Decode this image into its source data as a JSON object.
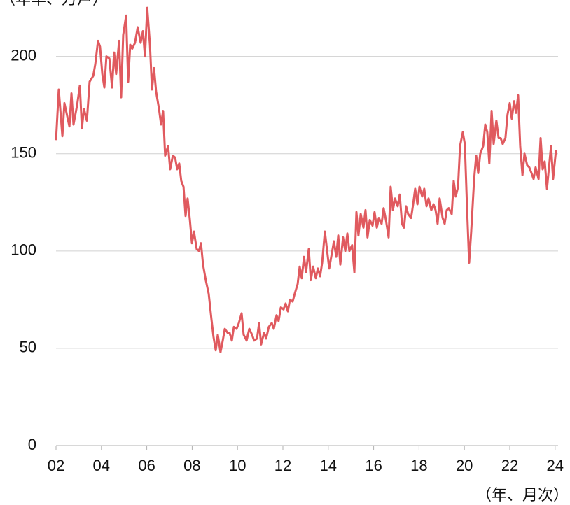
{
  "chart_data": {
    "type": "line",
    "y_label": "（年率、万戸）",
    "x_label": "（年、月次）",
    "xlim": [
      2002,
      2024.13
    ],
    "ylim": [
      0,
      229
    ],
    "xticks": [
      {
        "value": 2002,
        "label": "02"
      },
      {
        "value": 2004,
        "label": "04"
      },
      {
        "value": 2006,
        "label": "06"
      },
      {
        "value": 2008,
        "label": "08"
      },
      {
        "value": 2010,
        "label": "10"
      },
      {
        "value": 2012,
        "label": "12"
      },
      {
        "value": 2014,
        "label": "14"
      },
      {
        "value": 2016,
        "label": "16"
      },
      {
        "value": 2018,
        "label": "18"
      },
      {
        "value": 2020,
        "label": "20"
      },
      {
        "value": 2022,
        "label": "22"
      },
      {
        "value": 2024,
        "label": "24"
      }
    ],
    "yticks": [
      0,
      50,
      100,
      150,
      200
    ],
    "grid": true,
    "series": [
      {
        "color": "#e05a5f",
        "x": [
          2002.0,
          2002.12,
          2002.28,
          2002.37,
          2002.59,
          2002.68,
          2002.77,
          2002.93,
          2003.05,
          2003.14,
          2003.23,
          2003.36,
          2003.48,
          2003.64,
          2003.73,
          2003.85,
          2003.94,
          2004.04,
          2004.13,
          2004.22,
          2004.35,
          2004.47,
          2004.56,
          2004.65,
          2004.78,
          2004.87,
          2004.96,
          2005.09,
          2005.18,
          2005.27,
          2005.36,
          2005.48,
          2005.6,
          2005.73,
          2005.83,
          2005.92,
          2006.02,
          2006.14,
          2006.23,
          2006.32,
          2006.41,
          2006.54,
          2006.63,
          2006.72,
          2006.81,
          2006.94,
          2007.03,
          2007.15,
          2007.25,
          2007.34,
          2007.43,
          2007.52,
          2007.62,
          2007.71,
          2007.8,
          2007.9,
          2007.99,
          2008.08,
          2008.2,
          2008.3,
          2008.39,
          2008.48,
          2008.6,
          2008.73,
          2008.85,
          2008.94,
          2009.04,
          2009.13,
          2009.25,
          2009.35,
          2009.44,
          2009.56,
          2009.65,
          2009.75,
          2009.84,
          2009.96,
          2010.06,
          2010.18,
          2010.27,
          2010.4,
          2010.52,
          2010.64,
          2010.73,
          2010.86,
          2010.95,
          2011.04,
          2011.17,
          2011.26,
          2011.38,
          2011.51,
          2011.6,
          2011.72,
          2011.81,
          2011.91,
          2012.03,
          2012.12,
          2012.22,
          2012.31,
          2012.43,
          2012.52,
          2012.65,
          2012.74,
          2012.83,
          2012.93,
          2013.02,
          2013.14,
          2013.23,
          2013.33,
          2013.45,
          2013.54,
          2013.64,
          2013.73,
          2013.85,
          2013.94,
          2014.04,
          2014.13,
          2014.25,
          2014.35,
          2014.44,
          2014.53,
          2014.65,
          2014.75,
          2014.84,
          2014.93,
          2015.05,
          2015.15,
          2015.24,
          2015.33,
          2015.43,
          2015.55,
          2015.64,
          2015.73,
          2015.83,
          2015.95,
          2016.04,
          2016.14,
          2016.23,
          2016.35,
          2016.44,
          2016.54,
          2016.66,
          2016.75,
          2016.85,
          2016.94,
          2017.06,
          2017.15,
          2017.25,
          2017.34,
          2017.43,
          2017.52,
          2017.65,
          2017.74,
          2017.83,
          2017.93,
          2018.02,
          2018.14,
          2018.23,
          2018.33,
          2018.42,
          2018.54,
          2018.64,
          2018.73,
          2018.82,
          2018.91,
          2019.04,
          2019.13,
          2019.22,
          2019.31,
          2019.44,
          2019.53,
          2019.62,
          2019.72,
          2019.81,
          2019.93,
          2020.02,
          2020.12,
          2020.21,
          2020.3,
          2020.43,
          2020.52,
          2020.61,
          2020.7,
          2020.83,
          2020.92,
          2021.01,
          2021.1,
          2021.2,
          2021.29,
          2021.41,
          2021.51,
          2021.6,
          2021.69,
          2021.81,
          2021.9,
          2022.0,
          2022.09,
          2022.19,
          2022.28,
          2022.37,
          2022.46,
          2022.56,
          2022.65,
          2022.77,
          2022.86,
          2022.96,
          2023.05,
          2023.14,
          2023.27,
          2023.36,
          2023.45,
          2023.54,
          2023.64,
          2023.73,
          2023.82,
          2023.91,
          2024.04
        ],
        "values": [
          157,
          183,
          159,
          176,
          164,
          181,
          165,
          175,
          185,
          163,
          173,
          167,
          187,
          190,
          196,
          208,
          205,
          191,
          184,
          200,
          199,
          184,
          202,
          191,
          208,
          179,
          211,
          221,
          187,
          206,
          204,
          207,
          215,
          207,
          213,
          200,
          225,
          206,
          183,
          194,
          182,
          173,
          165,
          172,
          149,
          154,
          142,
          149,
          148,
          142,
          145,
          136,
          133,
          118,
          127,
          116,
          104,
          110,
          101,
          100,
          104,
          93,
          85,
          78,
          65,
          56,
          49,
          57,
          48,
          54,
          60,
          58,
          58,
          54,
          61,
          60,
          63,
          68,
          57,
          54,
          60,
          57,
          54,
          55,
          63,
          52,
          58,
          55,
          61,
          63,
          60,
          67,
          64,
          71,
          70,
          73,
          69,
          75,
          74,
          78,
          83,
          92,
          86,
          97,
          89,
          101,
          85,
          92,
          86,
          91,
          87,
          94,
          110,
          101,
          91,
          97,
          105,
          97,
          108,
          93,
          107,
          100,
          109,
          100,
          103,
          89,
          120,
          108,
          119,
          112,
          121,
          107,
          116,
          113,
          120,
          112,
          117,
          114,
          122,
          116,
          107,
          133,
          121,
          127,
          123,
          129,
          114,
          112,
          123,
          119,
          117,
          124,
          132,
          124,
          133,
          128,
          132,
          123,
          127,
          121,
          124,
          121,
          114,
          127,
          117,
          114,
          121,
          122,
          119,
          136,
          128,
          133,
          154,
          161,
          155,
          121,
          94,
          110,
          137,
          149,
          140,
          150,
          154,
          165,
          161,
          145,
          172,
          155,
          167,
          158,
          158,
          155,
          158,
          170,
          176,
          168,
          177,
          171,
          180,
          154,
          139,
          150,
          144,
          143,
          140,
          137,
          143,
          137,
          158,
          142,
          146,
          132,
          143,
          154,
          137,
          152
        ]
      }
    ]
  }
}
